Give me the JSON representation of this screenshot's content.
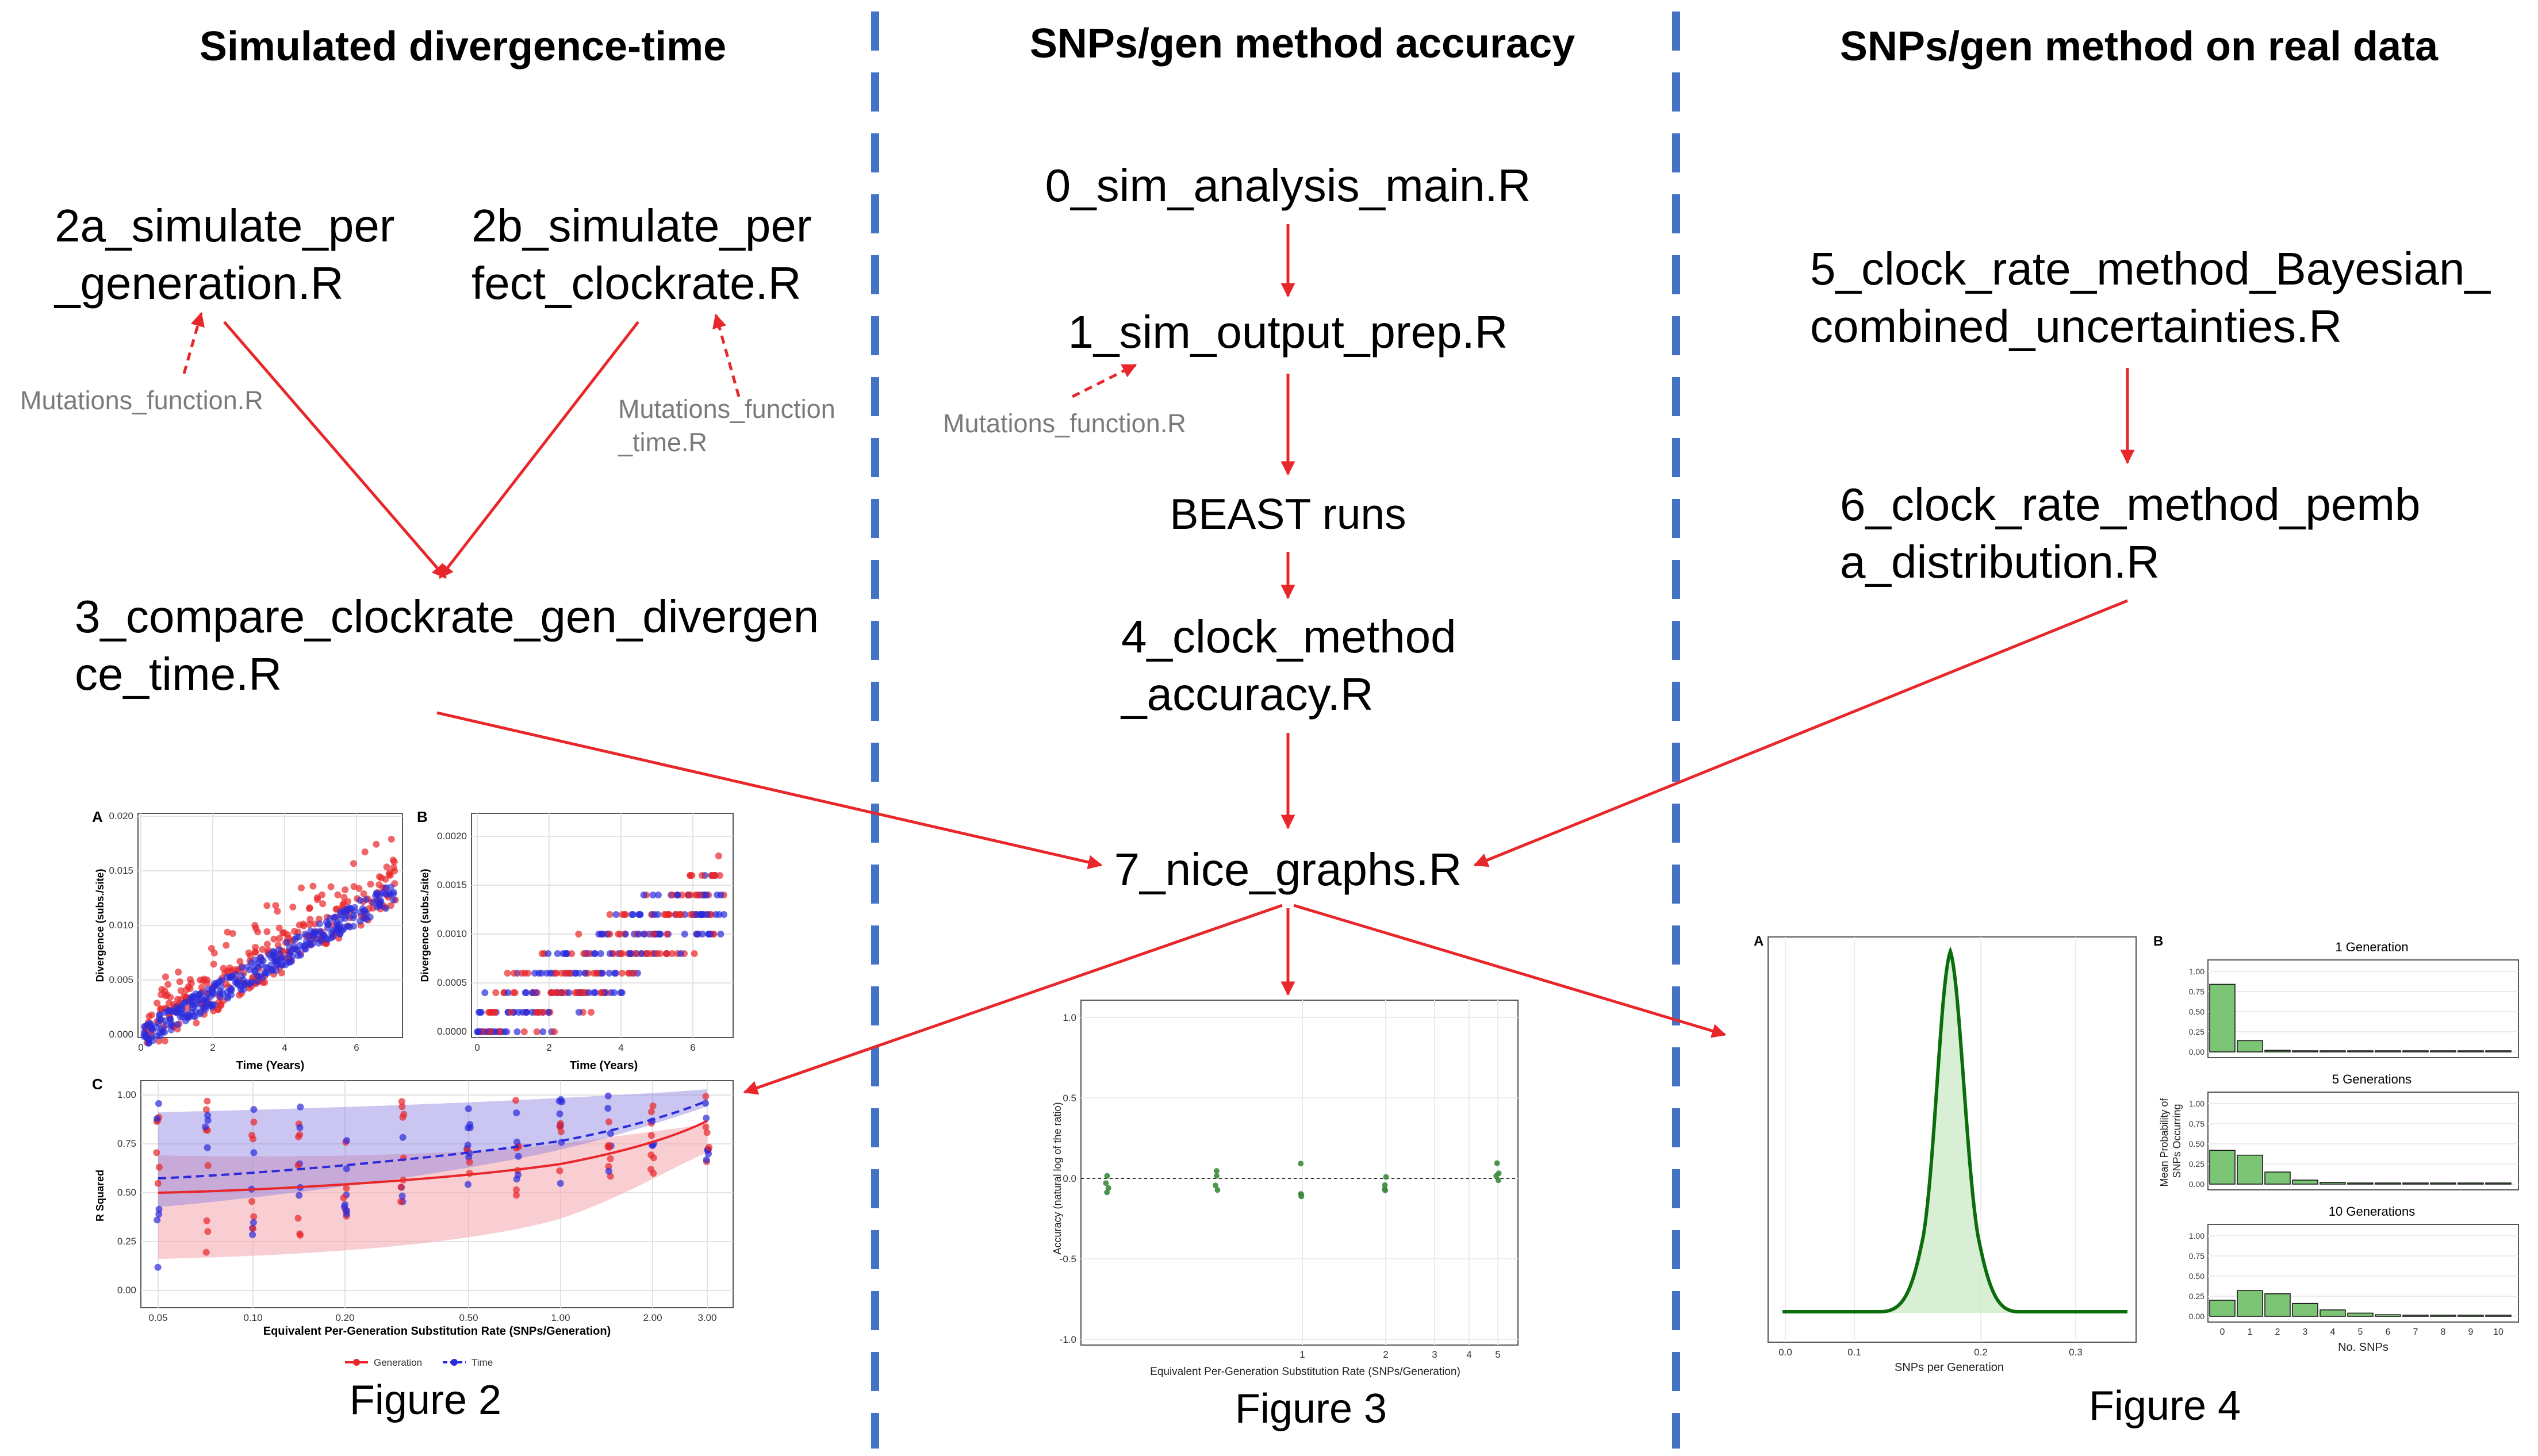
{
  "headers": {
    "col1": "Simulated divergence-time",
    "col2": "SNPs/gen method accuracy",
    "col3": "SNPs/gen method on real data"
  },
  "nodes": {
    "n2a_line1": "2a_simulate_per",
    "n2a_line2": "_generation.R",
    "n2b_line1": "2b_simulate_per",
    "n2b_line2": "fect_clockrate.R",
    "mut_left": "Mutations_function.R",
    "mut_right_line1": "Mutations_function",
    "mut_right_line2": "_time.R",
    "n3_line1": "3_compare_clockrate_gen_divergen",
    "n3_line2": "ce_time.R",
    "n0": "0_sim_analysis_main.R",
    "n1": "1_sim_output_prep.R",
    "mut_mid": "Mutations_function.R",
    "beast": "BEAST runs",
    "n4_line1": "4_clock_method",
    "n4_line2": "_accuracy.R",
    "n7": "7_nice_graphs.R",
    "n5_line1": "5_clock_rate_method_Bayesian_",
    "n5_line2": "combined_uncertainties.R",
    "n6_line1": "6_clock_rate_method_pemb",
    "n6_line2": "a_distribution.R"
  },
  "figures": {
    "fig2": "Figure 2",
    "fig3": "Figure 3",
    "fig4": "Figure 4"
  },
  "fig2": {
    "panelA": "A",
    "panelB": "B",
    "panelC": "C",
    "ylabA": "Divergence (subs./site)",
    "ylabB": "Divergence (subs./site)",
    "xlabAB": "Time (Years)",
    "ylabC": "R Squared",
    "xlabC": "Equivalent Per-Generation Substitution Rate (SNPs/Generation)",
    "legend_gen": "Generation",
    "legend_time": "Time",
    "ticksA_y": [
      "0.020",
      "0.015",
      "0.010",
      "0.005",
      "0.000"
    ],
    "ticksB_y": [
      "0.0020",
      "0.0015",
      "0.0010",
      "0.0005",
      "0.0000"
    ],
    "ticks_x": [
      "0",
      "2",
      "4",
      "6"
    ],
    "ticksC_y": [
      "1.00",
      "0.75",
      "0.50",
      "0.25",
      "0.00"
    ],
    "ticksC_x": [
      "0.05",
      "0.10",
      "0.20",
      "0.50",
      "1.00",
      "2.00",
      "3.00"
    ],
    "colors": {
      "red": "#e8272a",
      "blue": "#2b2bdc"
    }
  },
  "fig3": {
    "ylab": "Accuracy (natural log of the ratio)",
    "xlab": "Equivalent Per-Generation Substitution Rate (SNPs/Generation)",
    "ticks_y": [
      "1.0",
      "0.5",
      "0.0",
      "-0.5",
      "-1.0"
    ],
    "ticks_x": [
      "1",
      "2",
      "3",
      "4",
      "5"
    ],
    "color": "#3c8a3c"
  },
  "fig4": {
    "panelA": "A",
    "panelB": "B",
    "xlabA": "SNPs per Generation",
    "ticksA_x": [
      "0.0",
      "0.1",
      "0.2",
      "0.3"
    ],
    "sub1": "1 Generation",
    "sub2": "5 Generations",
    "sub3": "10 Generations",
    "ylabB_line1": "Mean Probability of",
    "ylabB_line2": "SNPs Occurring",
    "xlabB": "No. SNPs",
    "ticksB_y": [
      "1.00",
      "0.75",
      "0.50",
      "0.25",
      "0.00"
    ],
    "ticksB_x": [
      "0",
      "1",
      "2",
      "3",
      "4",
      "5",
      "6",
      "7",
      "8",
      "9",
      "10"
    ],
    "bars": {
      "g1": [
        0.84,
        0.14,
        0.02,
        0.005,
        0.003,
        0.002,
        0.002,
        0.002,
        0.002,
        0.002,
        0.002
      ],
      "g5": [
        0.42,
        0.36,
        0.15,
        0.05,
        0.02,
        0.01,
        0.005,
        0.003,
        0.003,
        0.003,
        0.003
      ],
      "g10": [
        0.2,
        0.32,
        0.28,
        0.16,
        0.08,
        0.04,
        0.02,
        0.01,
        0.005,
        0.003,
        0.003
      ]
    },
    "green": "#7cc576",
    "dark_green": "#0b6d0b"
  }
}
